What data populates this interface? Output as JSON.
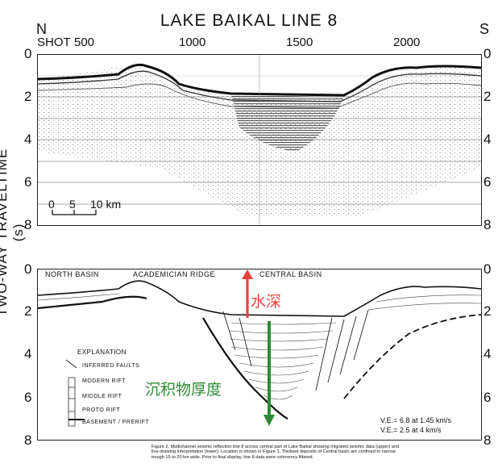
{
  "header": {
    "title": "LAKE BAIKAL  LINE 8",
    "north": "N",
    "south": "S",
    "shot_label": "SHOT",
    "shot_ticks": [
      "500",
      "1000",
      "1500",
      "2000"
    ]
  },
  "axis": {
    "ylabel": "TWO-WAY  TRAVELTIME (s)",
    "upper_ticks": [
      "0",
      "2",
      "4",
      "6",
      "8"
    ],
    "lower_ticks": [
      "0",
      "2",
      "4",
      "6",
      "8"
    ]
  },
  "scale_bar": {
    "labels": [
      "0",
      "5",
      "10 km"
    ]
  },
  "basins": {
    "north": "NORTH  BASIN",
    "academician": "ACADEMICIAN  RIDGE",
    "central": "CENTRAL  BASIN"
  },
  "legend": {
    "title": "EXPLANATION",
    "items": [
      "INFERRED FAULTS",
      "MODERN RIFT",
      "MIDDLE RIFT",
      "PROTO RIFT",
      "BASEMENT / PRERIFT"
    ]
  },
  "annotations": {
    "water_depth": "水深",
    "sediment_thickness": "沉积物厚度",
    "ve1": "V.E.= 6.8 at 1.45 km/s",
    "ve2": "V.E.= 2.5 at 4 km/s",
    "red_color": "#e8433c",
    "green_color": "#2f8a36"
  },
  "caption": {
    "text": "Figure 2. Multichannel seismic reflection line 8 across central part of Lake Baikal showing migrated seismic data (upper) and line-drawing interpretation (lower). Location is shown in Figure 1. Thickest deposits of Central basin are confined to narrow trough 15 to 20 km wide. Prior to final display, line 8 data were coherency filtered."
  }
}
